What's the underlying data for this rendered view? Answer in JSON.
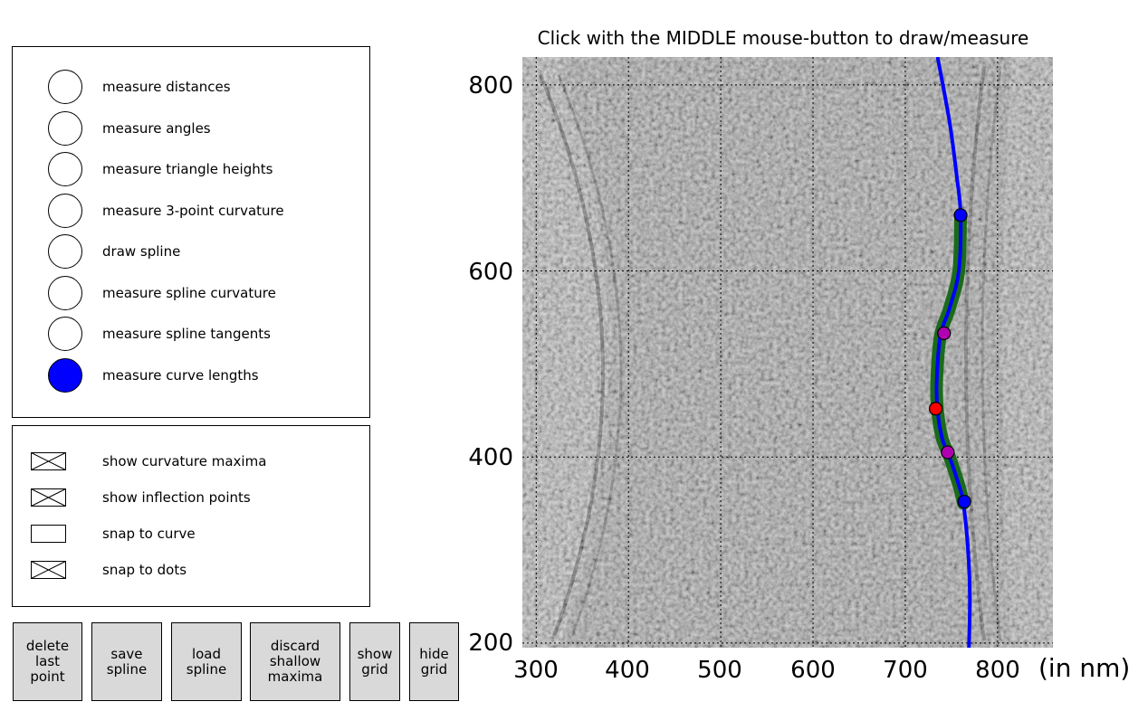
{
  "plot": {
    "title": "Click with the MIDDLE mouse-button to draw/measure",
    "x_ticks": [
      "300",
      "400",
      "500",
      "600",
      "700",
      "800"
    ],
    "y_ticks": [
      "800",
      "600",
      "400",
      "200"
    ],
    "unit_label": "(in nm)",
    "x_range": [
      285,
      860
    ],
    "y_range": [
      195,
      830
    ],
    "grid_visible": true,
    "colors": {
      "curve": "#0000ff",
      "spline_band": "#1a6b1a",
      "endpoint": "#0000ff",
      "maximum": "#ff0000",
      "inflection": "#b000b0"
    },
    "curve_points_nm": [
      [
        735,
        830
      ],
      [
        748,
        760
      ],
      [
        756,
        700
      ],
      [
        760,
        660
      ],
      [
        758,
        600
      ],
      [
        748,
        560
      ],
      [
        738,
        530
      ],
      [
        734,
        480
      ],
      [
        735,
        450
      ],
      [
        740,
        420
      ],
      [
        748,
        400
      ],
      [
        758,
        370
      ],
      [
        763,
        350
      ],
      [
        768,
        300
      ],
      [
        770,
        250
      ],
      [
        769,
        195
      ]
    ],
    "spline_range_nm": [
      350,
      660
    ],
    "markers": [
      {
        "type": "endpoint",
        "x": 760,
        "y": 660
      },
      {
        "type": "inflection",
        "x": 742,
        "y": 533
      },
      {
        "type": "maximum",
        "x": 733,
        "y": 452
      },
      {
        "type": "inflection",
        "x": 746,
        "y": 405
      },
      {
        "type": "endpoint",
        "x": 764,
        "y": 352
      }
    ]
  },
  "modes": {
    "items": [
      {
        "label": "measure distances",
        "selected": false
      },
      {
        "label": "measure angles",
        "selected": false
      },
      {
        "label": "measure triangle heights",
        "selected": false
      },
      {
        "label": "measure 3-point curvature",
        "selected": false
      },
      {
        "label": "draw spline",
        "selected": false
      },
      {
        "label": "measure spline curvature",
        "selected": false
      },
      {
        "label": "measure spline tangents",
        "selected": false
      },
      {
        "label": "measure curve lengths",
        "selected": true
      }
    ]
  },
  "options": {
    "items": [
      {
        "label": "show curvature maxima",
        "checked": true
      },
      {
        "label": "show inflection points",
        "checked": true
      },
      {
        "label": "snap to curve",
        "checked": false
      },
      {
        "label": "snap to dots",
        "checked": true
      }
    ]
  },
  "buttons": {
    "delete_last_point": "delete\nlast\npoint",
    "save_spline": "save\nspline",
    "load_spline": "load\nspline",
    "discard_shallow_maxima": "discard\nshallow\nmaxima",
    "show_grid": "show\ngrid",
    "hide_grid": "hide\ngrid"
  }
}
